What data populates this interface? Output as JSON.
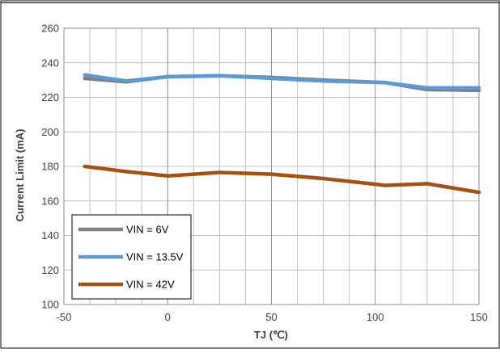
{
  "colors": {
    "grid": "#bfbfbf",
    "border": "#000000",
    "series_vin_6v": "#808080",
    "series_vin_13_5v": "#5b9bd5",
    "series_vin_42v": "#a5510f"
  },
  "chart_data": {
    "type": "line",
    "title": "",
    "xlabel": "TJ (℃)",
    "ylabel": "Current Limit (mA)",
    "xlim": [
      -50,
      150
    ],
    "ylim": [
      100,
      260
    ],
    "x_ticks": [
      -50,
      0,
      50,
      100,
      150
    ],
    "y_ticks": [
      100,
      120,
      140,
      160,
      180,
      200,
      220,
      240,
      260
    ],
    "grid": true,
    "legend_position": "bottom-left",
    "series": [
      {
        "name": "VIN = 6V",
        "color": "#808080",
        "x": [
          -40,
          -20,
          0,
          25,
          50,
          75,
          105,
          125,
          150
        ],
        "y": [
          231,
          229,
          232,
          232.5,
          231.5,
          230,
          228.5,
          224.5,
          224
        ]
      },
      {
        "name": "VIN = 13.5V",
        "color": "#5b9bd5",
        "x": [
          -40,
          -20,
          0,
          25,
          50,
          75,
          105,
          125,
          150
        ],
        "y": [
          233,
          229.5,
          232,
          232.5,
          231,
          229.5,
          228.5,
          225.5,
          225.5
        ]
      },
      {
        "name": "VIN = 42V",
        "color": "#a5510f",
        "x": [
          -40,
          -20,
          0,
          25,
          50,
          75,
          105,
          125,
          150
        ],
        "y": [
          180,
          177,
          174.5,
          176.5,
          175.5,
          173,
          169,
          170,
          165
        ]
      }
    ]
  }
}
